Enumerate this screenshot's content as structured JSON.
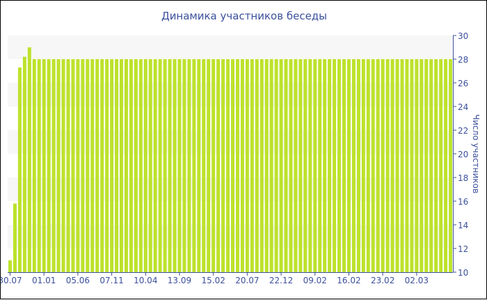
{
  "chart_data": {
    "type": "bar",
    "title": "Динамика участников беседы",
    "ylabel": "Число участников",
    "xlabel": "",
    "ylim": [
      10,
      30
    ],
    "yticks": [
      10,
      12,
      14,
      16,
      18,
      20,
      22,
      24,
      26,
      28,
      30
    ],
    "xtick_labels": [
      "30.07",
      "01.01",
      "05.06",
      "07.11",
      "10.04",
      "13.09",
      "15.02",
      "20.07",
      "22.12",
      "09.02",
      "16.02",
      "23.02",
      "02.03"
    ],
    "xtick_every": 7,
    "values": [
      11,
      15.8,
      27.3,
      28.2,
      29,
      28,
      28,
      28,
      28,
      28,
      28,
      28,
      28,
      28,
      28,
      28,
      28,
      28,
      28,
      28,
      28,
      28,
      28,
      28,
      28,
      28,
      28,
      28,
      28,
      28,
      28,
      28,
      28,
      28,
      28,
      28,
      28,
      28,
      28,
      28,
      28,
      28,
      28,
      28,
      28,
      28,
      28,
      28,
      28,
      28,
      28,
      28,
      28,
      28,
      28,
      28,
      28,
      28,
      28,
      28,
      28,
      28,
      28,
      28,
      28,
      28,
      28,
      28,
      28,
      28,
      28,
      28,
      28,
      28,
      28,
      28,
      28,
      28,
      28,
      28,
      28,
      28,
      28,
      28,
      28,
      28,
      28,
      28,
      28,
      28,
      28,
      28
    ],
    "bar_color": "#bde22c",
    "axis_color": "#3b509c",
    "grid": "alternating bands",
    "y_axis_side": "right"
  }
}
